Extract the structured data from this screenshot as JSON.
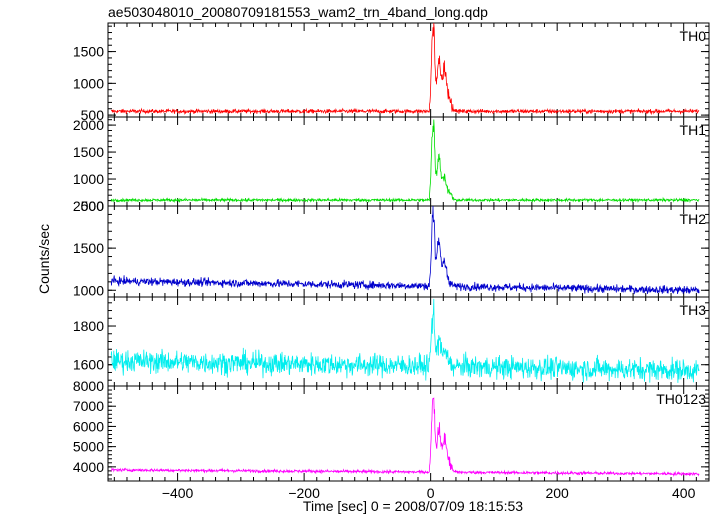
{
  "chart_data": {
    "type": "line",
    "title": "ae503048010_20080709181553_wam2_trn_4band_long.qdp",
    "xlabel": "Time [sec] 0 = 2008/07/09 18:15:53",
    "ylabel": "Counts/sec",
    "xlim": [
      -510,
      440
    ],
    "x_ticks": [
      -400,
      -200,
      0,
      200,
      400
    ],
    "x_tick_labels": [
      "−400",
      "−200",
      "0",
      "200",
      "400"
    ],
    "grid": false,
    "legend": "none",
    "panels": [
      {
        "name": "TH0",
        "color": "#ff0000",
        "ylim": [
          470,
          1950
        ],
        "y_ticks": [
          500,
          1000,
          1500
        ],
        "y_tick_labels": [
          "500",
          "1000",
          "1500"
        ],
        "baseline": 560,
        "noise": 30,
        "peak_main": 1900,
        "peak_second": 1380,
        "peak_third": 1280
      },
      {
        "name": "TH1",
        "color": "#00dd00",
        "ylim": [
          500,
          2150
        ],
        "y_ticks": [
          500,
          1000,
          1500,
          2000
        ],
        "y_tick_labels": [
          "500",
          "1000",
          "1500",
          "2000"
        ],
        "baseline": 610,
        "noise": 25,
        "peak_main": 2050,
        "peak_second": 1480,
        "peak_third": 1050
      },
      {
        "name": "TH2",
        "color": "#0000cc",
        "ylim": [
          920,
          2000
        ],
        "y_ticks": [
          1000,
          1500,
          2000
        ],
        "y_tick_labels": [
          "1000",
          "1500",
          "2000"
        ],
        "baseline_start": 1110,
        "baseline_end": 1000,
        "noise": 45,
        "peak_main": 1960,
        "peak_second": 1700,
        "peak_third": 1380
      },
      {
        "name": "TH3",
        "color": "#00eeee",
        "ylim": [
          1490,
          1950
        ],
        "y_ticks": [
          1600,
          1800
        ],
        "y_tick_labels": [
          "1600",
          "1800"
        ],
        "baseline_start": 1620,
        "baseline_end": 1570,
        "noise": 55,
        "peak_main": 1900,
        "peak_second": 1760,
        "peak_third": 1700
      },
      {
        "name": "TH0123",
        "color": "#ff00ff",
        "ylim": [
          3300,
          8000
        ],
        "y_ticks": [
          4000,
          5000,
          6000,
          7000,
          8000
        ],
        "y_tick_labels": [
          "4000",
          "5000",
          "6000",
          "7000",
          "8000"
        ],
        "baseline_start": 3850,
        "baseline_end": 3650,
        "noise": 70,
        "peak_main": 7900,
        "peak_second": 6000,
        "peak_third": 5500
      }
    ]
  }
}
